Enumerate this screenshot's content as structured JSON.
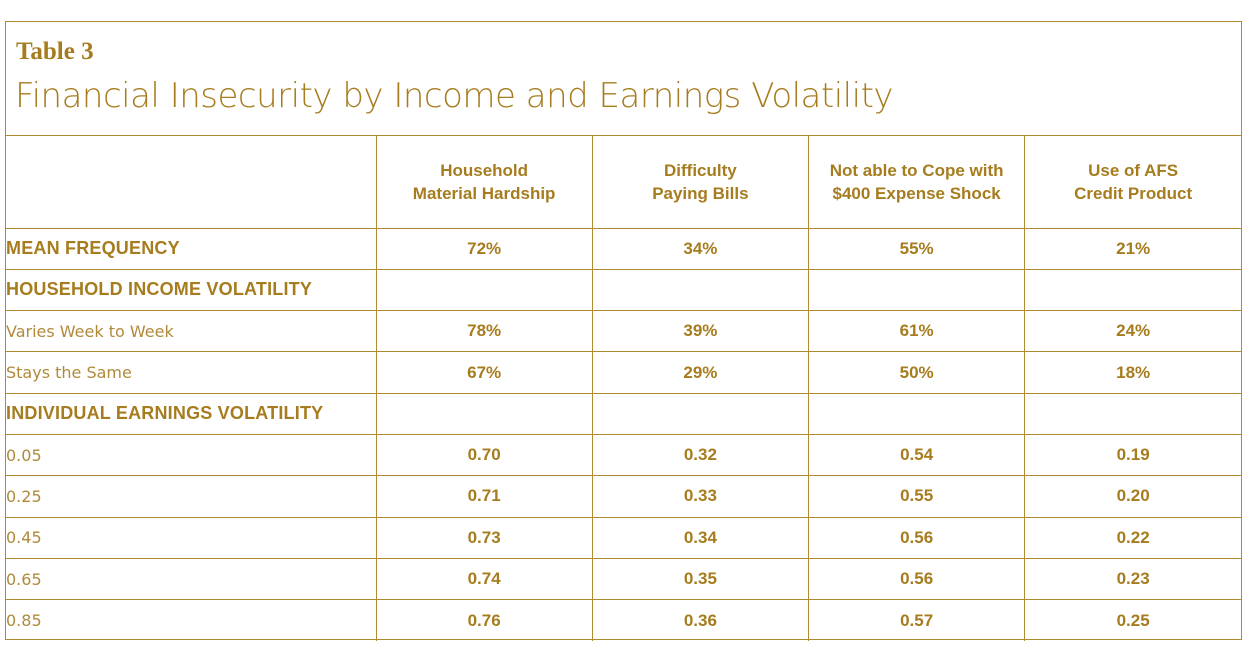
{
  "header": {
    "table_label": "Table 3",
    "title": "Financial Insecurity by Income and Earnings Volatility"
  },
  "columns": [
    {
      "line1": "Household",
      "line2": "Material Hardship"
    },
    {
      "line1": "Difficulty",
      "line2": "Paying Bills"
    },
    {
      "line1": "Not able to Cope with",
      "line2": "$400 Expense Shock"
    },
    {
      "line1": "Use of AFS",
      "line2": "Credit Product"
    }
  ],
  "rows": [
    {
      "label": "MEAN FREQUENCY",
      "values": [
        "72%",
        "34%",
        "55%",
        "21%"
      ]
    },
    {
      "label": "HOUSEHOLD INCOME VOLATILITY",
      "values": [
        "",
        "",
        "",
        ""
      ]
    },
    {
      "label": "Varies Week to Week",
      "values": [
        "78%",
        "39%",
        "61%",
        "24%"
      ]
    },
    {
      "label": "Stays the Same",
      "values": [
        "67%",
        "29%",
        "50%",
        "18%"
      ]
    },
    {
      "label": "INDIVIDUAL EARNINGS VOLATILITY",
      "values": [
        "",
        "",
        "",
        ""
      ]
    },
    {
      "label": "0.05",
      "values": [
        "0.70",
        "0.32",
        "0.54",
        "0.19"
      ]
    },
    {
      "label": "0.25",
      "values": [
        "0.71",
        "0.33",
        "0.55",
        "0.20"
      ]
    },
    {
      "label": "0.45",
      "values": [
        "0.73",
        "0.34",
        "0.56",
        "0.22"
      ]
    },
    {
      "label": "0.65",
      "values": [
        "0.74",
        "0.35",
        "0.56",
        "0.23"
      ]
    },
    {
      "label": "0.85",
      "values": [
        "0.76",
        "0.36",
        "0.57",
        "0.25"
      ]
    }
  ],
  "colors": {
    "text": "#a67c1e",
    "border": "#b08a2e"
  }
}
